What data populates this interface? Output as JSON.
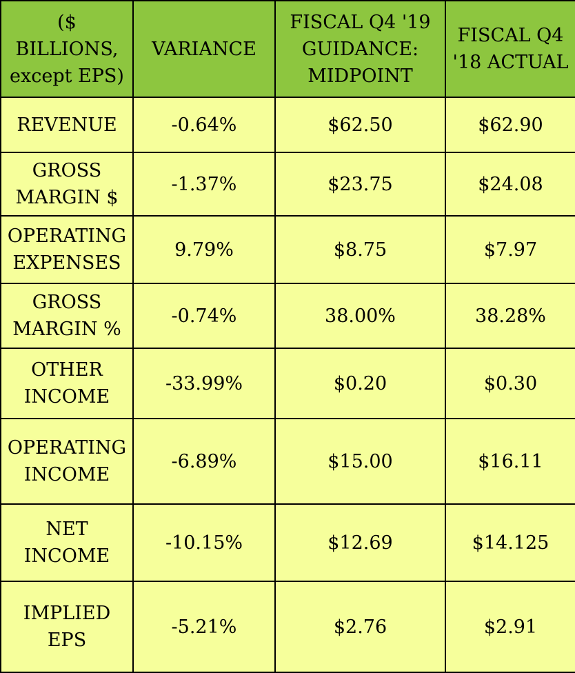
{
  "table": {
    "headers": [
      "($ BILLIONS,\nexcept EPS)",
      "VARIANCE",
      "FISCAL Q4 '19\nGUIDANCE:\nMIDPOINT",
      "FISCAL Q4\n'18 ACTUAL"
    ],
    "rows": [
      {
        "label": "REVENUE",
        "variance": "-0.64%",
        "guidance": "$62.50",
        "actual": "$62.90"
      },
      {
        "label": "GROSS\nMARGIN $",
        "variance": "-1.37%",
        "guidance": "$23.75",
        "actual": "$24.08"
      },
      {
        "label": "OPERATING\nEXPENSES",
        "variance": "9.79%",
        "guidance": "$8.75",
        "actual": "$7.97"
      },
      {
        "label": "GROSS\nMARGIN %",
        "variance": "-0.74%",
        "guidance": "38.00%",
        "actual": "38.28%"
      },
      {
        "label": "OTHER\nINCOME",
        "variance": "-33.99%",
        "guidance": "$0.20",
        "actual": "$0.30"
      },
      {
        "label": "OPERATING\nINCOME",
        "variance": "-6.89%",
        "guidance": "$15.00",
        "actual": "$16.11"
      },
      {
        "label": "NET\nINCOME",
        "variance": "-10.15%",
        "guidance": "$12.69",
        "actual": "$14.125"
      },
      {
        "label": "IMPLIED\nEPS",
        "variance": "-5.21%",
        "guidance": "$2.76",
        "actual": "$2.91"
      }
    ]
  },
  "colors": {
    "header_bg": "#8dc63f",
    "body_bg": "#f6ff9b",
    "border": "#000000"
  }
}
